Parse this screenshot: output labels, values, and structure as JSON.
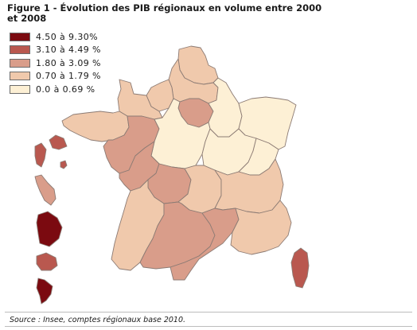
{
  "title": "Figure 1 - Évolution des PIB régionaux en volume entre 2000 et 2008",
  "legend": [
    {
      "label": "4.50 à 9.30%",
      "color": "#7b0a10"
    },
    {
      "label": "3.10 à 4.49 %",
      "color": "#b9584f"
    },
    {
      "label": "1.80 à 3.09 %",
      "color": "#d99d8a"
    },
    {
      "label": "0.70 à 1.79 %",
      "color": "#f0c9ac"
    },
    {
      "label": "0.0 à 0.69 %",
      "color": "#fdf0d5"
    }
  ],
  "source": "Source : Insee, comptes régionaux base 2010."
}
